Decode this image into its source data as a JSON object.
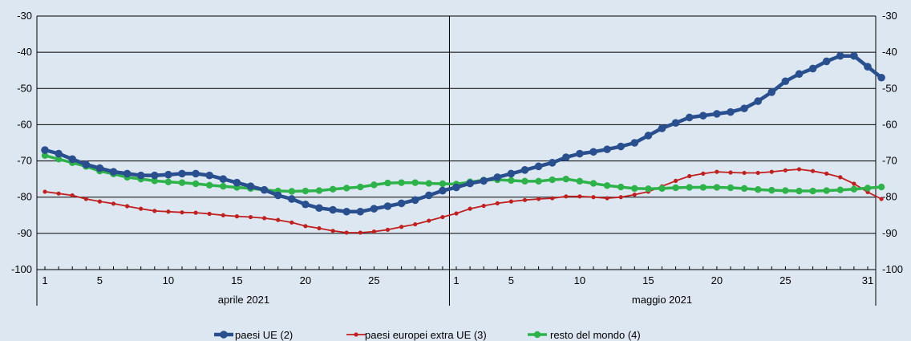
{
  "chart_data": {
    "type": "line",
    "ylim": [
      -100,
      -30
    ],
    "y_ticks": [
      -30,
      -40,
      -50,
      -60,
      -70,
      -80,
      -90,
      -100
    ],
    "y_axis_both_sides": true,
    "grid": "horizontal",
    "periods": [
      {
        "label": "aprile 2021",
        "days": 30,
        "tick_labels": [
          "1",
          "5",
          "10",
          "15",
          "20",
          "25"
        ],
        "tick_days": [
          1,
          5,
          10,
          15,
          20,
          25
        ]
      },
      {
        "label": "maggio 2021",
        "days": 31,
        "tick_labels": [
          "1",
          "5",
          "10",
          "15",
          "20",
          "25",
          "31"
        ],
        "tick_days": [
          1,
          5,
          10,
          15,
          20,
          25,
          31
        ]
      }
    ],
    "legend_position": "bottom",
    "series": [
      {
        "name": "paesi UE (2)",
        "color": "#2a4f8e",
        "values": [
          -67,
          -68,
          -69.5,
          -71,
          -72,
          -73,
          -73.5,
          -74,
          -74,
          -73.8,
          -73.5,
          -73.5,
          -74,
          -75,
          -76,
          -77,
          -78,
          -79.5,
          -80.5,
          -82,
          -83,
          -83.5,
          -84,
          -84,
          -83.2,
          -82.5,
          -81.7,
          -80.8,
          -79.5,
          -78.2,
          -77.3,
          -76.2,
          -75.5,
          -74.5,
          -73.5,
          -72.5,
          -71.5,
          -70.5,
          -69,
          -68,
          -67.5,
          -66.8,
          -66,
          -65,
          -63,
          -61,
          -59.5,
          -58,
          -57.5,
          -57,
          -56.5,
          -55.5,
          -53.5,
          -51,
          -48,
          -46,
          -44.5,
          -42.5,
          -41,
          -41,
          -44,
          -47
        ]
      },
      {
        "name": "paesi europei  extra UE (3)",
        "color": "#c0201f",
        "values": [
          -78.5,
          -79,
          -79.5,
          -80.5,
          -81.2,
          -81.8,
          -82.5,
          -83.2,
          -83.8,
          -84,
          -84.2,
          -84.3,
          -84.6,
          -85,
          -85.3,
          -85.5,
          -85.8,
          -86.3,
          -87,
          -88,
          -88.6,
          -89.3,
          -89.8,
          -89.8,
          -89.5,
          -89,
          -88.2,
          -87.5,
          -86.5,
          -85.5,
          -84.5,
          -83.2,
          -82.4,
          -81.7,
          -81.2,
          -80.8,
          -80.5,
          -80.3,
          -79.8,
          -79.8,
          -80,
          -80.3,
          -80,
          -79.3,
          -78.5,
          -77,
          -75.5,
          -74.2,
          -73.5,
          -73,
          -73.2,
          -73.3,
          -73.3,
          -73,
          -72.6,
          -72.3,
          -72.8,
          -73.5,
          -74.5,
          -76.3,
          -78.6,
          -80.5
        ]
      },
      {
        "name": "resto del mondo (4)",
        "color": "#2eb34a",
        "values": [
          -68.5,
          -69.5,
          -70.5,
          -71.5,
          -72.8,
          -73.6,
          -74.5,
          -75,
          -75.5,
          -75.8,
          -76,
          -76.3,
          -76.7,
          -77,
          -77.3,
          -77.6,
          -78,
          -78.3,
          -78.4,
          -78.3,
          -78.2,
          -77.8,
          -77.5,
          -77.2,
          -76.6,
          -76.1,
          -76,
          -76,
          -76.2,
          -76.3,
          -76.4,
          -75.8,
          -75.3,
          -75.2,
          -75.4,
          -75.6,
          -75.6,
          -75.2,
          -75,
          -75.6,
          -76.2,
          -76.8,
          -77.2,
          -77.6,
          -77.7,
          -77.6,
          -77.4,
          -77.3,
          -77.3,
          -77.3,
          -77.4,
          -77.6,
          -77.9,
          -78.1,
          -78.2,
          -78.3,
          -78.3,
          -78.2,
          -78,
          -77.8,
          -77.5,
          -77.2
        ]
      }
    ]
  }
}
